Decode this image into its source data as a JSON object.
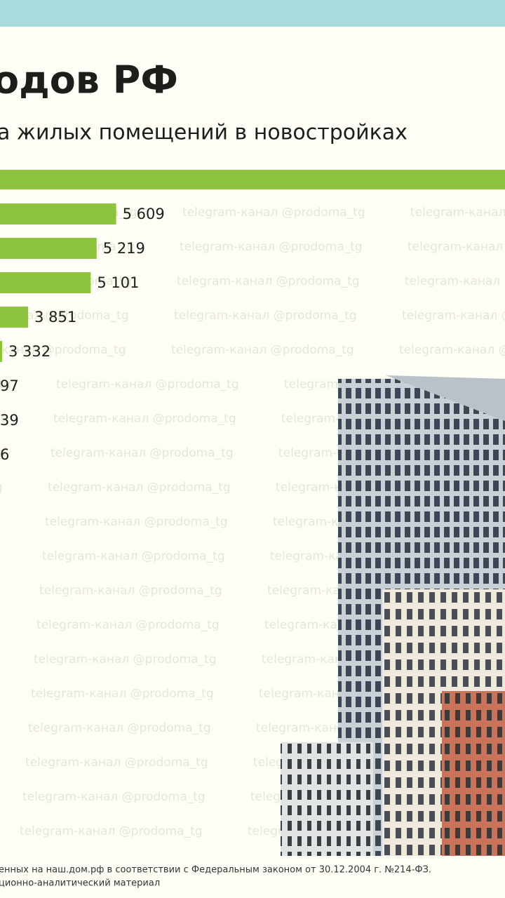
{
  "chart_data": {
    "type": "bar",
    "orientation": "horizontal",
    "title": "одов РФ",
    "subtitle": "а жилых помещений в новостройках",
    "values": [
      5609,
      5219,
      5101,
      3851,
      3332
    ],
    "value_labels": [
      "5 609",
      "5 219",
      "5 101",
      "3 851",
      "3 332"
    ],
    "cropped_labels": [
      "97",
      "39",
      "6"
    ],
    "color": "#8cc43f",
    "xlim": [
      3290,
      13370
    ],
    "watermark": "telegram-канал @prodoma_tg",
    "footer": [
      "енных на наш.дом.рф в соответствии с Федеральным законом от 30.12.2004 г. №214-ФЗ.",
      "ционно-аналитический материал"
    ]
  }
}
